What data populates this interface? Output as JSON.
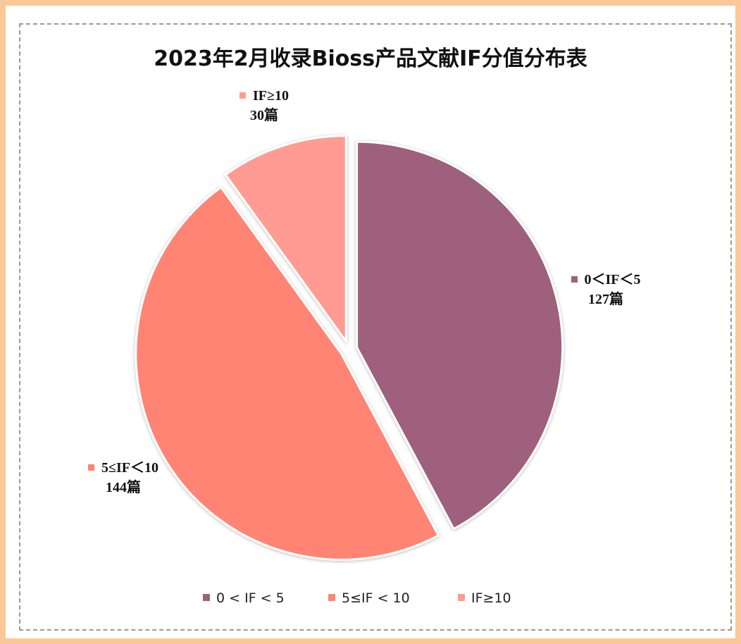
{
  "chart_data": {
    "type": "pie",
    "title": "2023年2月收录Bioss产品文献IF分值分布表",
    "unit": "篇",
    "series": [
      {
        "name": "0 < IF < 5",
        "label": "0＜IF＜5",
        "value": 127,
        "color": "#9e617c"
      },
      {
        "name": "5≤IF < 10",
        "label": "5≤IF＜10",
        "value": 144,
        "color": "#ff8473"
      },
      {
        "name": "IF≥10",
        "label": "IF≥10",
        "value": 30,
        "color": "#ff9b92"
      }
    ],
    "legend": {
      "placement": "bottom",
      "entries": [
        "0 < IF < 5",
        "5≤IF < 10",
        "IF≥10"
      ]
    }
  },
  "data_labels": [
    {
      "name": "0＜IF＜5",
      "value": "127篇"
    },
    {
      "name": "5≤IF＜10",
      "value": "144篇"
    },
    {
      "name": "IF≥10",
      "value": "30篇"
    }
  ]
}
